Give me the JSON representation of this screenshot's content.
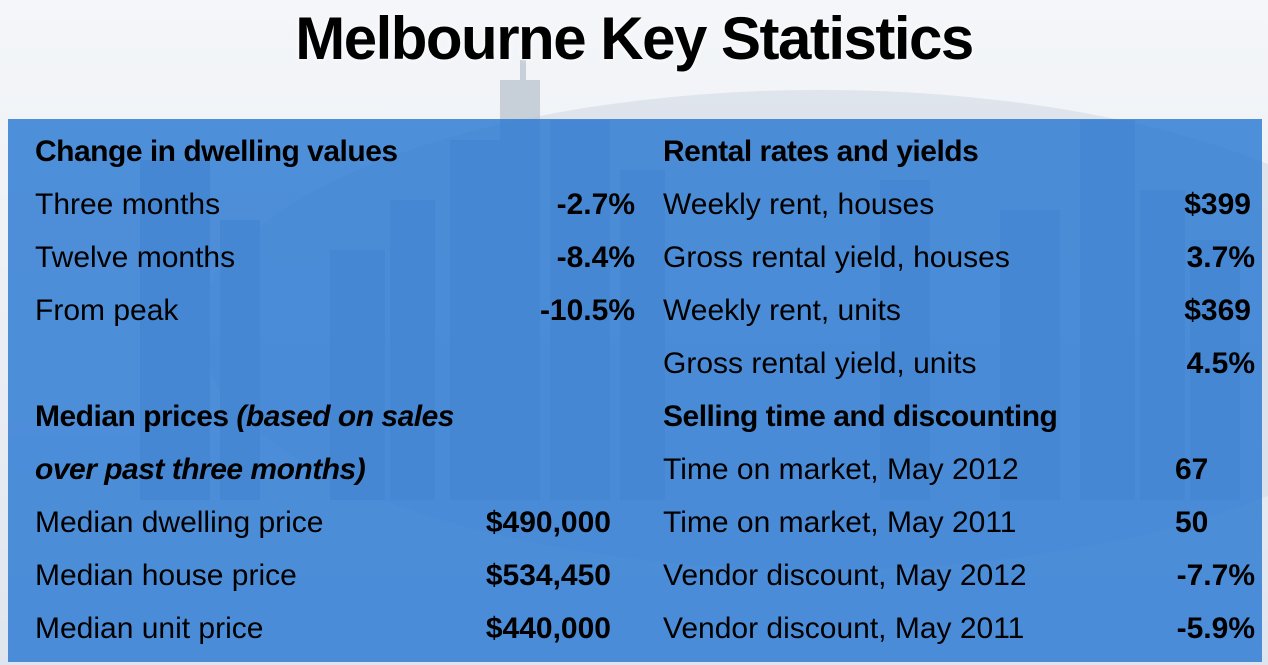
{
  "title": "Melbourne Key Statistics",
  "colors": {
    "panel": "#2675d2",
    "text": "#000000"
  },
  "left": {
    "dwelling_header": "Change in dwelling values",
    "dwelling_rows": [
      {
        "label": "Three months",
        "value": "-2.7%"
      },
      {
        "label": "Twelve months",
        "value": "-8.4%"
      },
      {
        "label": "From peak",
        "value": "-10.5%"
      }
    ],
    "median_header_bold": "Median prices ",
    "median_header_italic_1": "(based on sales",
    "median_header_italic_2": "over past three months)",
    "median_rows": [
      {
        "label": "Median dwelling price",
        "value": "$490,000"
      },
      {
        "label": "Median house price",
        "value": "$534,450"
      },
      {
        "label": "Median unit price",
        "value": "$440,000"
      }
    ]
  },
  "right": {
    "rental_header": "Rental rates and yields",
    "rental_rows": [
      {
        "label": "Weekly rent, houses",
        "value": "$399"
      },
      {
        "label": "Gross rental yield, houses",
        "value": "3.7%"
      },
      {
        "label": "Weekly rent, units",
        "value": "$369"
      },
      {
        "label": "Gross rental yield, units",
        "value": "4.5%"
      }
    ],
    "selling_header": "Selling time and discounting",
    "selling_rows": [
      {
        "label": "Time on market, May 2012",
        "value": "67"
      },
      {
        "label": "Time on market, May 2011",
        "value": "50"
      },
      {
        "label": "Vendor discount, May 2012",
        "value": "-7.7%"
      },
      {
        "label": "Vendor discount, May 2011",
        "value": "-5.9%"
      }
    ]
  }
}
